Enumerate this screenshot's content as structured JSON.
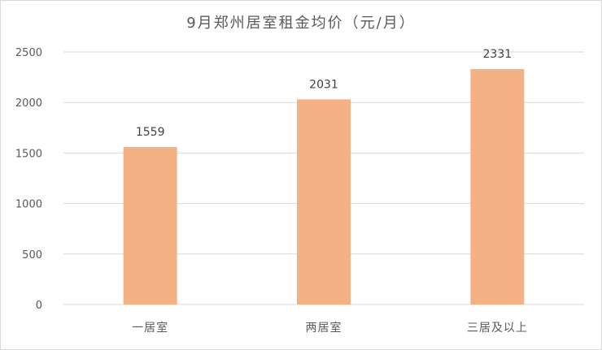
{
  "chart_data": {
    "type": "bar",
    "title": "9月郑州居室租金均价（元/月）",
    "categories": [
      "一居室",
      "两居室",
      "三居及以上"
    ],
    "values": [
      1559,
      2031,
      2331
    ],
    "data_labels": [
      "1559",
      "2031",
      "2331"
    ],
    "ylim": [
      0,
      2500
    ],
    "yticks": [
      0,
      500,
      1000,
      1500,
      2000,
      2500
    ],
    "ytick_labels": [
      "0",
      "500",
      "1000",
      "1500",
      "2000",
      "2500"
    ],
    "grid": true,
    "legend": "none",
    "bar_color": "#f4b183",
    "grid_color": "#d9d9d9"
  }
}
